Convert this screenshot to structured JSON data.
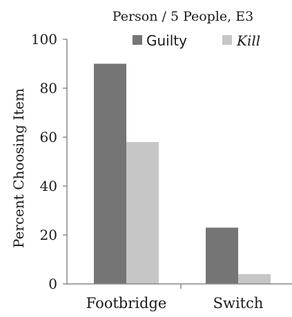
{
  "chart_data": {
    "type": "bar",
    "title": "Person / 5 People, E3",
    "xlabel": "",
    "ylabel": "Percent Choosing Item",
    "categories": [
      "Footbridge",
      "Switch"
    ],
    "series": [
      {
        "name": "Guilty",
        "values": [
          90,
          23
        ],
        "color": "#757575"
      },
      {
        "name": "Kill",
        "values": [
          58,
          4
        ],
        "color": "#c6c6c6"
      }
    ],
    "ylim": [
      0,
      100
    ],
    "yticks": [
      0,
      20,
      40,
      60,
      80,
      100
    ],
    "grid": false,
    "legend_position": "top"
  }
}
